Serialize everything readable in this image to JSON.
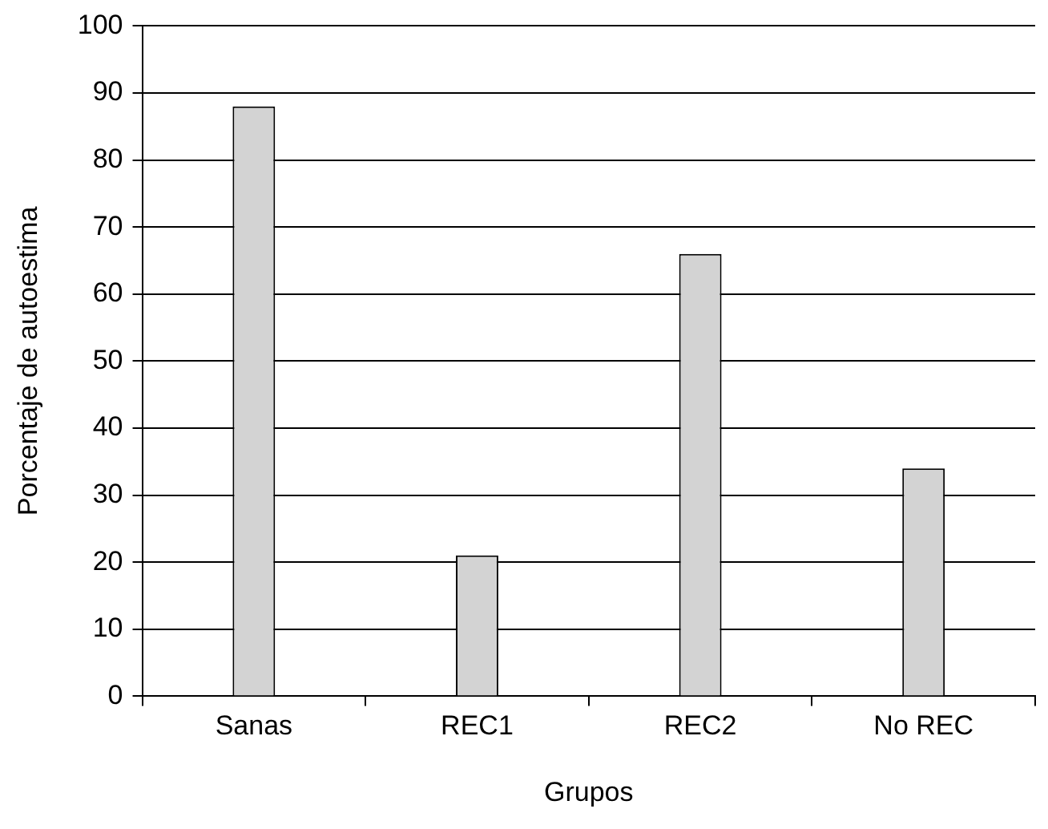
{
  "chart_data": {
    "type": "bar",
    "xlabel": "Grupos",
    "ylabel": "Porcentaje de autoestima",
    "categories": [
      "Sanas",
      "REC1",
      "REC2",
      "No REC"
    ],
    "values": [
      88,
      21,
      66,
      34
    ],
    "color": "#d3d3d3",
    "ylim": [
      0,
      100
    ],
    "yticks": [
      0,
      10,
      20,
      30,
      40,
      50,
      60,
      70,
      80,
      90,
      100
    ],
    "grid": "y"
  }
}
